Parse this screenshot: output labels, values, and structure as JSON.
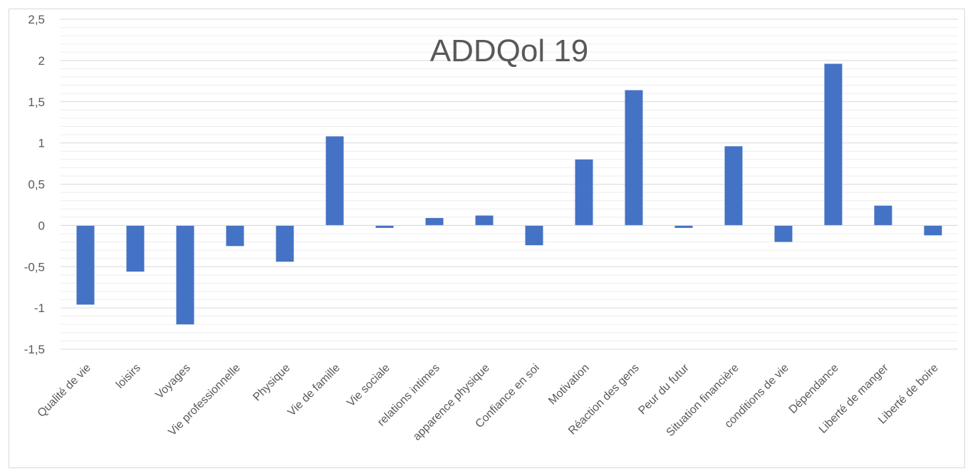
{
  "chart_data": {
    "type": "bar",
    "title": "ADDQol 19",
    "xlabel": "",
    "ylabel": "",
    "ylim": [
      -1.5,
      2.5
    ],
    "yticks": [
      "-1,5",
      "-1",
      "-0,5",
      "0",
      "0,5",
      "1",
      "1,5",
      "2",
      "2,5"
    ],
    "ytick_values": [
      -1.5,
      -1,
      -0.5,
      0,
      0.5,
      1,
      1.5,
      2,
      2.5
    ],
    "grid": true,
    "legend": "none",
    "bar_color": "#4472C4",
    "categories": [
      "Qualité de vie",
      "loisirs",
      "Voyages",
      "Vie professionnelle",
      "Physique",
      "Vie de famille",
      "Vie sociale",
      "relations intimes",
      "apparence physique",
      "Confiance en soi",
      "Motivation",
      "Réaction des gens",
      "Peur du futur",
      "Situation financière",
      "conditions de vie",
      "Dépendance",
      "Liberté de manger",
      "Liberté de boire"
    ],
    "values": [
      -0.96,
      -0.56,
      -1.2,
      -0.25,
      -0.44,
      1.08,
      -0.03,
      0.09,
      0.12,
      -0.24,
      0.8,
      1.64,
      -0.03,
      0.96,
      -0.2,
      1.96,
      0.24,
      -0.12
    ]
  }
}
